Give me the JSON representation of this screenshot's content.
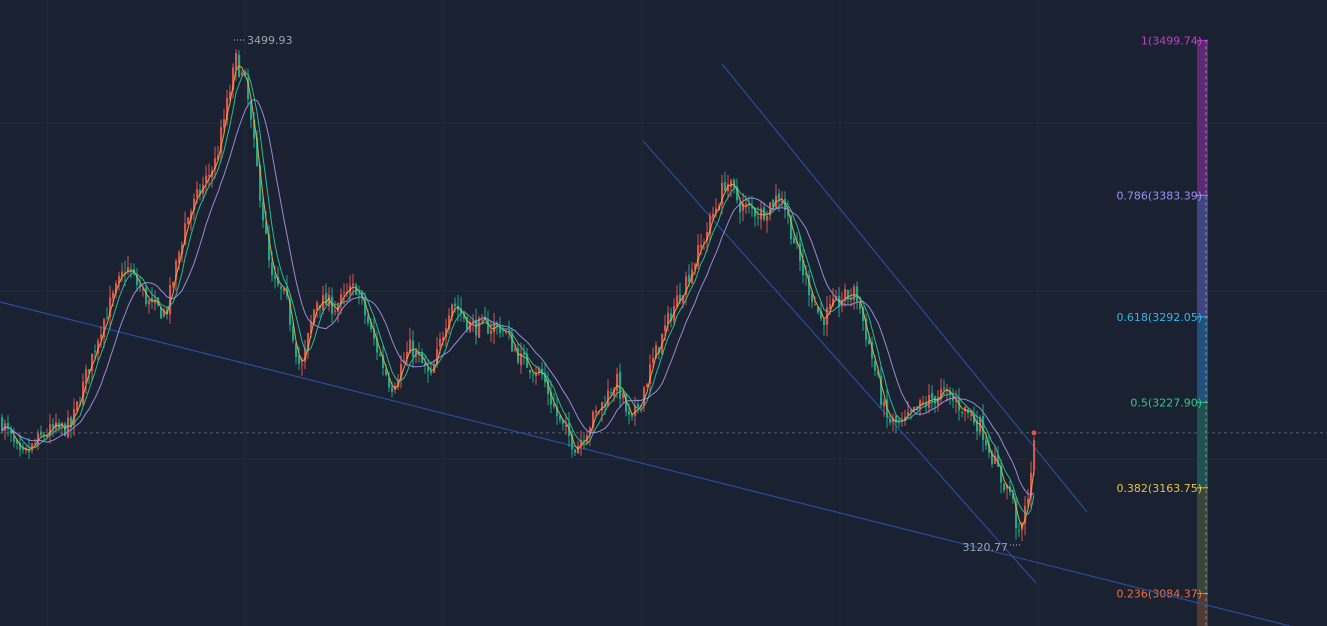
{
  "chart_data": {
    "type": "candlestick",
    "ylim": [
      3060,
      3530
    ],
    "price_high": {
      "value": 3499.93,
      "label": "3499.93"
    },
    "price_low": {
      "value": 3120.77,
      "label": "3120.77"
    },
    "last_price": 3205,
    "anchors": [
      [
        0,
        3215
      ],
      [
        20,
        3185
      ],
      [
        45,
        3205
      ],
      [
        70,
        3210
      ],
      [
        100,
        3285
      ],
      [
        125,
        3330
      ],
      [
        150,
        3300
      ],
      [
        165,
        3295
      ],
      [
        185,
        3365
      ],
      [
        215,
        3410
      ],
      [
        235,
        3485
      ],
      [
        245,
        3465
      ],
      [
        260,
        3380
      ],
      [
        270,
        3320
      ],
      [
        285,
        3305
      ],
      [
        300,
        3250
      ],
      [
        315,
        3305
      ],
      [
        335,
        3300
      ],
      [
        355,
        3315
      ],
      [
        370,
        3280
      ],
      [
        390,
        3240
      ],
      [
        410,
        3270
      ],
      [
        430,
        3245
      ],
      [
        450,
        3305
      ],
      [
        470,
        3285
      ],
      [
        500,
        3285
      ],
      [
        520,
        3260
      ],
      [
        540,
        3250
      ],
      [
        560,
        3210
      ],
      [
        575,
        3195
      ],
      [
        600,
        3225
      ],
      [
        615,
        3245
      ],
      [
        630,
        3210
      ],
      [
        650,
        3255
      ],
      [
        670,
        3295
      ],
      [
        700,
        3345
      ],
      [
        725,
        3395
      ],
      [
        740,
        3375
      ],
      [
        760,
        3370
      ],
      [
        780,
        3385
      ],
      [
        800,
        3330
      ],
      [
        820,
        3290
      ],
      [
        840,
        3305
      ],
      [
        855,
        3310
      ],
      [
        870,
        3265
      ],
      [
        885,
        3215
      ],
      [
        900,
        3210
      ],
      [
        920,
        3225
      ],
      [
        940,
        3235
      ],
      [
        960,
        3225
      ],
      [
        980,
        3210
      ],
      [
        1000,
        3170
      ],
      [
        1010,
        3160
      ],
      [
        1018,
        3125
      ],
      [
        1025,
        3150
      ],
      [
        1035,
        3205
      ]
    ],
    "moving_averages": [
      {
        "period": 3,
        "color": "#e9b23c"
      },
      {
        "period": 6,
        "color": "#2fc9a8"
      },
      {
        "period": 13,
        "color": "#a497ea"
      }
    ],
    "fibonacci": [
      {
        "label": "1(3499.74)",
        "value": 3499.74,
        "color": "#c83ccd",
        "band": "#6a2a80"
      },
      {
        "label": "0.786(3383.39)",
        "value": 3383.39,
        "color": "#9d90f0",
        "band": "#474b8f"
      },
      {
        "label": "0.618(3292.05)",
        "value": 3292.05,
        "color": "#35b6e6",
        "band": "#23588a"
      },
      {
        "label": "0.5(3227.90)",
        "value": 3227.9,
        "color": "#30c987",
        "band": "#1f5a57"
      },
      {
        "label": "0.382(3163.75)",
        "value": 3163.75,
        "color": "#e8c13a",
        "band": "#3d4c3a"
      },
      {
        "label": "0.236(3084.37)",
        "value": 3084.37,
        "color": "#ef7040",
        "band": "#5b4033"
      }
    ],
    "colors": {
      "up": "#d9534f",
      "down": "#1fa58a",
      "trendline": "#2a4c9e",
      "background": "#1a2130"
    }
  }
}
